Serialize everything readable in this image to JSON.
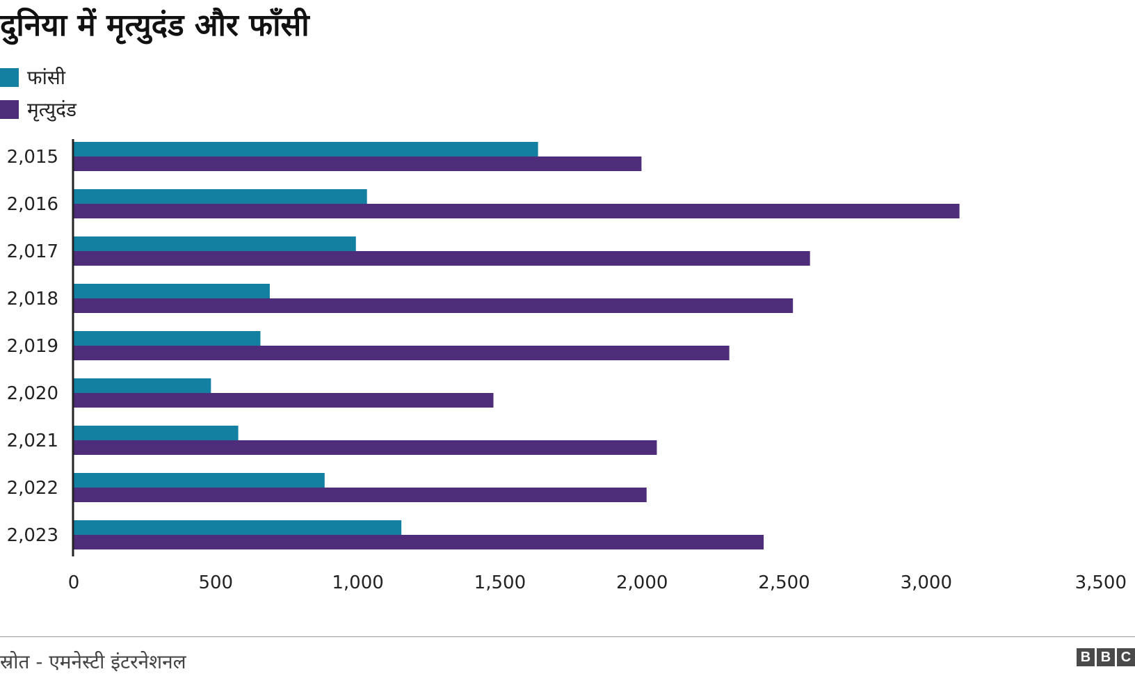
{
  "chart_data": {
    "type": "bar",
    "orientation": "horizontal",
    "title": "दुनिया में मृत्युदंड और फाँसी",
    "categories": [
      "2,015",
      "2,016",
      "2,017",
      "2,018",
      "2,019",
      "2,020",
      "2,021",
      "2,022",
      "2,023"
    ],
    "series": [
      {
        "name": "फांसी",
        "color": "#1380a1",
        "values": [
          1634,
          1032,
          993,
          690,
          657,
          483,
          579,
          883,
          1153
        ]
      },
      {
        "name": "मृत्युदंड",
        "color": "#4e2d7b",
        "values": [
          1998,
          3117,
          2591,
          2531,
          2307,
          1477,
          2052,
          2016,
          2428
        ]
      }
    ],
    "x_ticks": [
      "0",
      "500",
      "1,000",
      "1,500",
      "2,000",
      "2,500",
      "3,000",
      "3,500"
    ],
    "xlim": [
      0,
      3500
    ],
    "grid": false,
    "legend_position": "top-left"
  },
  "footer": {
    "source": "स्रोत - एमनेस्टी इंटरनेशनल",
    "logo": [
      "B",
      "B",
      "C"
    ]
  }
}
